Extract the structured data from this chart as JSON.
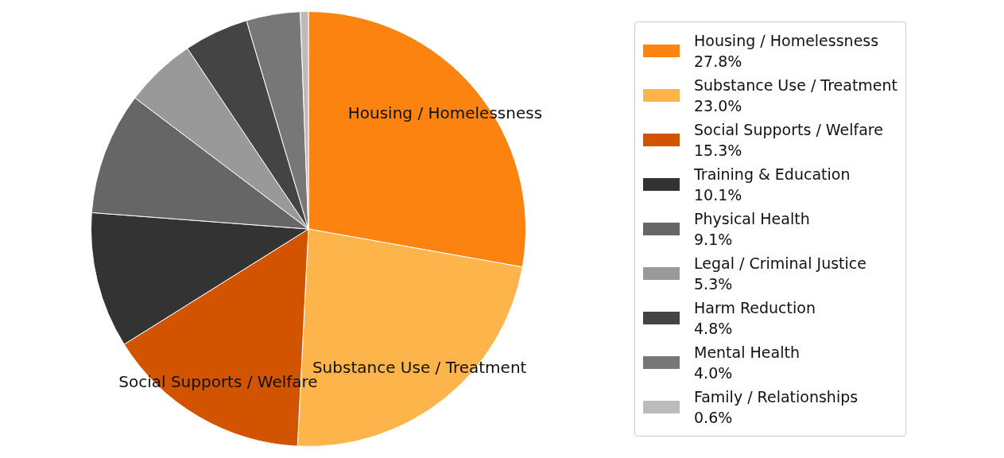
{
  "chart_data": {
    "type": "pie",
    "categories": [
      "Housing / Homelessness",
      "Substance Use / Treatment",
      "Social Supports / Welfare",
      "Training & Education",
      "Physical Health",
      "Legal / Criminal Justice",
      "Harm Reduction",
      "Mental Health",
      "Family / Relationships"
    ],
    "values": [
      27.8,
      23.0,
      15.3,
      10.1,
      9.1,
      5.3,
      4.8,
      4.0,
      0.6
    ],
    "colors": [
      "#fd8311",
      "#fdb44b",
      "#d35400",
      "#333333",
      "#666666",
      "#999999",
      "#444444",
      "#777777",
      "#bbbbbb"
    ],
    "value_labels": [
      "27.8%",
      "23.0%",
      "15.3%",
      "10.1%",
      "9.1%",
      "5.3%",
      "4.8%",
      "4.0%",
      "0.6%"
    ],
    "annotations": [
      "Housing / Homelessness",
      "Substance Use / Treatment",
      "Social Supports / Welfare"
    ],
    "legend": "right"
  }
}
